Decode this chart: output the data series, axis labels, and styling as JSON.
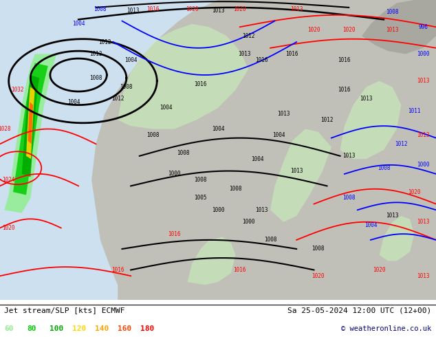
{
  "title_left": "Jet stream/SLP [kts] ECMWF",
  "title_right": "Sa 25-05-2024 12:00 UTC (12+00)",
  "copyright": "© weatheronline.co.uk",
  "legend_values": [
    "60",
    "80",
    "100",
    "120",
    "140",
    "160",
    "180"
  ],
  "legend_colors": [
    "#90EE90",
    "#00CC00",
    "#00AA00",
    "#FFD700",
    "#FFA500",
    "#FF4500",
    "#FF0000"
  ],
  "background_color": "#f0f0f0",
  "figure_width": 6.34,
  "figure_height": 4.9,
  "dpi": 100,
  "bottom_bar_height": 0.11
}
